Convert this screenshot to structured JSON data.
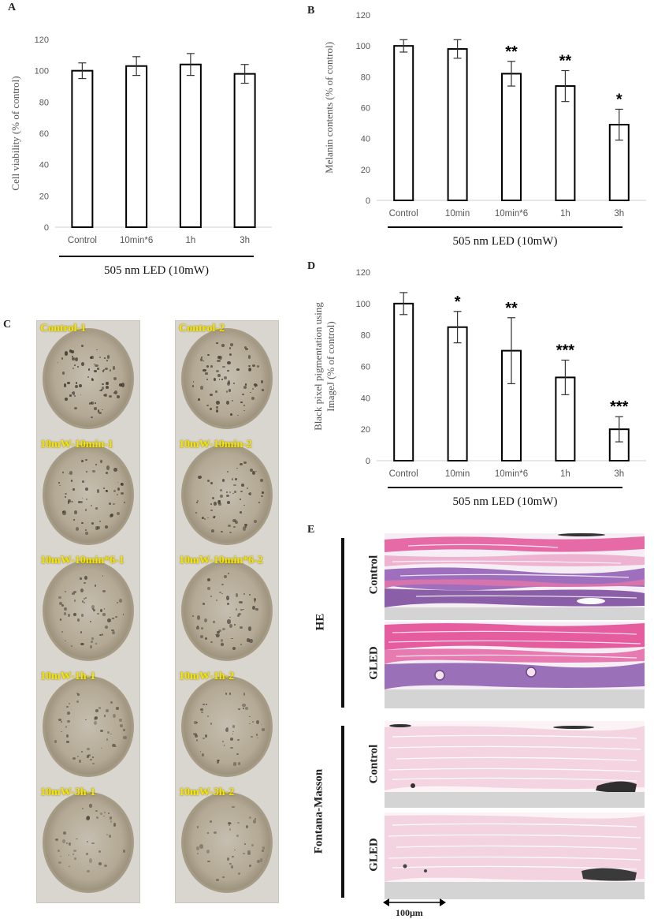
{
  "panels": {
    "A": "A",
    "B": "B",
    "C": "C",
    "D": "D",
    "E": "E"
  },
  "chart_data": [
    {
      "panel": "A",
      "type": "bar",
      "ylabel": "Cell viability (% of control)",
      "xlabel": "505 nm LED (10mW)",
      "categories": [
        "Control",
        "10min*6",
        "1h",
        "3h"
      ],
      "values": [
        100,
        103,
        104,
        98
      ],
      "errors": [
        5,
        6,
        7,
        6
      ],
      "significance": [
        "",
        "",
        "",
        ""
      ],
      "ylim": [
        0,
        120
      ],
      "yticks": [
        "0",
        "20",
        "40",
        "60",
        "80",
        "100",
        "120"
      ],
      "grid": false
    },
    {
      "panel": "B",
      "type": "bar",
      "ylabel": "Melanin contents (% of control)",
      "xlabel": "505 nm LED (10mW)",
      "categories": [
        "Control",
        "10min",
        "10min*6",
        "1h",
        "3h"
      ],
      "values": [
        100,
        98,
        82,
        74,
        49
      ],
      "errors": [
        4,
        6,
        8,
        10,
        10
      ],
      "significance": [
        "",
        "",
        "**",
        "**",
        "*"
      ],
      "ylim": [
        0,
        120
      ],
      "yticks": [
        "0",
        "20",
        "40",
        "60",
        "80",
        "100",
        "120"
      ],
      "grid": false
    },
    {
      "panel": "D",
      "type": "bar",
      "ylabel": "Black pixel pigmentation using ImageJ (% of control)",
      "ylabel_lines": [
        "Black pixel pigmentation using",
        "ImageJ (% of control)"
      ],
      "xlabel": "505 nm LED (10mW)",
      "categories": [
        "Control",
        "10min",
        "10min*6",
        "1h",
        "3h"
      ],
      "values": [
        100,
        85,
        70,
        53,
        20
      ],
      "errors": [
        7,
        10,
        21,
        11,
        8
      ],
      "significance": [
        "",
        "*",
        "**",
        "***",
        "***"
      ],
      "ylim": [
        0,
        120
      ],
      "yticks": [
        "0",
        "20",
        "40",
        "60",
        "80",
        "100",
        "120"
      ],
      "grid": false
    }
  ],
  "dishes": {
    "left": [
      "Control-1",
      "10mW-10min-1",
      "10mW-10min*6-1",
      "10mW-1h-1",
      "10mW-3h-1"
    ],
    "right": [
      "Control-2",
      "10mW-10min-2",
      "10mW-10min*6-2",
      "10mW-1h-2",
      "10mW-3h-2"
    ]
  },
  "histology": {
    "groups": [
      "HE",
      "Fontana-Masson"
    ],
    "rows": [
      "Control",
      "GLED",
      "Control",
      "GLED"
    ],
    "scale_bar": "100μm",
    "colors": {
      "he_pink": "#e3609e",
      "he_purple": "#9a6fb9",
      "fm_pink": "#f3d6e2",
      "fm_dark": "#2a2a2a"
    }
  }
}
